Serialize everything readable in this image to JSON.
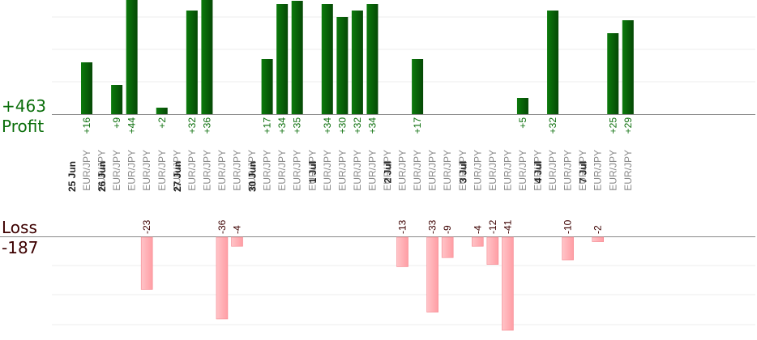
{
  "summary": {
    "profit_total": "+463",
    "profit_label": "Profit",
    "loss_label": "Loss",
    "loss_total": "-187"
  },
  "colors": {
    "profit_bar": "#0a5e0a",
    "profit_text": "#0a6e0a",
    "loss_bar": "#ffb3b8",
    "loss_text": "#3d0000",
    "tick_date": "#222222",
    "tick_pair": "#8a8a8a",
    "grid": "#eeeeee",
    "axis": "#8a8a8a"
  },
  "chart_data": {
    "type": "bar",
    "profit_ylim": [
      0,
      35
    ],
    "loss_ylim": [
      -41,
      0
    ],
    "categories": [
      {
        "date": "25 Jun",
        "pair": "EUR/JPY",
        "value": 16
      },
      {
        "pair": "EUR/JPY",
        "value": null
      },
      {
        "date": "26 Jun",
        "pair": "EUR/JPY",
        "value": 9
      },
      {
        "pair": "EUR/JPY",
        "value": 44
      },
      {
        "pair": "EUR/JPY",
        "value": -23
      },
      {
        "pair": "EUR/JPY",
        "value": 2
      },
      {
        "pair": "EUR/JPY",
        "value": null
      },
      {
        "date": "27 Jun",
        "pair": "EUR/JPY",
        "value": 32
      },
      {
        "pair": "EUR/JPY",
        "value": 36
      },
      {
        "pair": "EUR/JPY",
        "value": -36
      },
      {
        "pair": "EUR/JPY",
        "value": -4
      },
      {
        "pair": "EUR/JPY",
        "value": null
      },
      {
        "date": "30 Jun",
        "pair": "EUR/JPY",
        "value": 17
      },
      {
        "pair": "EUR/JPY",
        "value": 34
      },
      {
        "pair": "EUR/JPY",
        "value": 35
      },
      {
        "pair": "EUR/JPY",
        "value": null
      },
      {
        "date": "1 Jul",
        "pair": "EUR/JPY",
        "value": 34
      },
      {
        "pair": "EUR/JPY",
        "value": 30
      },
      {
        "pair": "EUR/JPY",
        "value": 32
      },
      {
        "pair": "EUR/JPY",
        "value": 34
      },
      {
        "pair": "EUR/JPY",
        "value": null
      },
      {
        "date": "2 Jul",
        "pair": "EUR/JPY",
        "value": -13
      },
      {
        "pair": "EUR/JPY",
        "value": 17
      },
      {
        "pair": "EUR/JPY",
        "value": -33
      },
      {
        "pair": "EUR/JPY",
        "value": -9
      },
      {
        "pair": "EUR/JPY",
        "value": null
      },
      {
        "date": "3 Jul",
        "pair": "EUR/JPY",
        "value": -4
      },
      {
        "pair": "EUR/JPY",
        "value": -12
      },
      {
        "pair": "EUR/JPY",
        "value": -41
      },
      {
        "pair": "EUR/JPY",
        "value": 5
      },
      {
        "pair": "EUR/JPY",
        "value": null
      },
      {
        "date": "4 Jul",
        "pair": "EUR/JPY",
        "value": 32
      },
      {
        "pair": "EUR/JPY",
        "value": -10
      },
      {
        "pair": "EUR/JPY",
        "value": null
      },
      {
        "date": "7 Jul",
        "pair": "EUR/JPY",
        "value": -2
      },
      {
        "pair": "EUR/JPY",
        "value": 25
      },
      {
        "pair": "EUR/JPY",
        "value": 29
      }
    ]
  }
}
